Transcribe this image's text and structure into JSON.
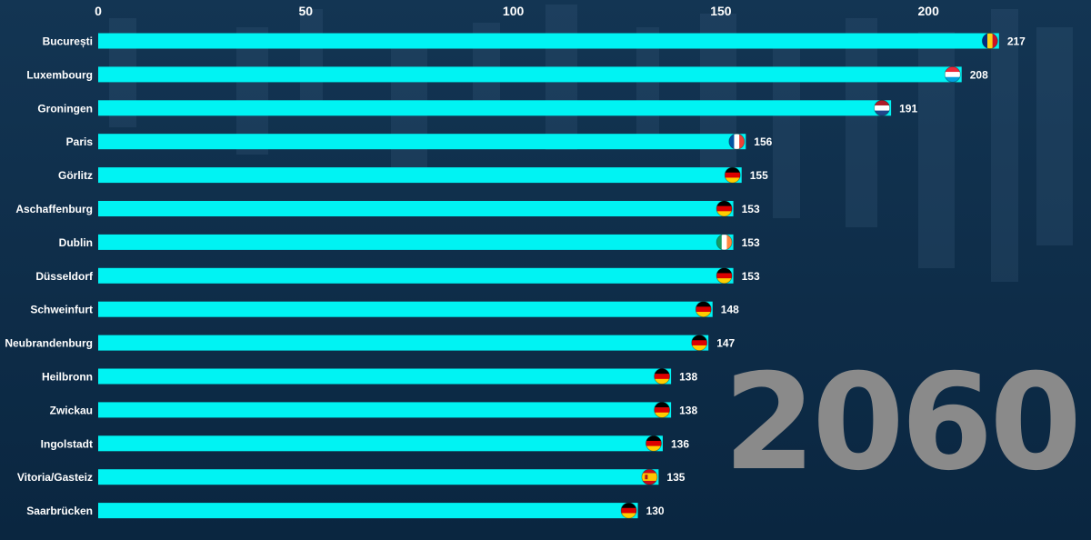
{
  "chart_data": {
    "type": "bar",
    "orientation": "horizontal",
    "year_label": "2060",
    "xlim": [
      0,
      217
    ],
    "x_ticks": [
      0,
      50,
      100,
      150,
      200
    ],
    "axis_position": "top",
    "grid": false,
    "categories": [
      "București",
      "Luxembourg",
      "Groningen",
      "Paris",
      "Görlitz",
      "Aschaffenburg",
      "Dublin",
      "Düsseldorf",
      "Schweinfurt",
      "Neubrandenburg",
      "Heilbronn",
      "Zwickau",
      "Ingolstadt",
      "Vitoria/Gasteiz",
      "Saarbrücken"
    ],
    "values": [
      217,
      208,
      191,
      156,
      155,
      153,
      153,
      153,
      148,
      147,
      138,
      138,
      136,
      135,
      130
    ],
    "flags": [
      "romania-flag-icon",
      "luxembourg-flag-icon",
      "netherlands-flag-icon",
      "france-flag-icon",
      "germany-flag-icon",
      "germany-flag-icon",
      "ireland-flag-icon",
      "germany-flag-icon",
      "germany-flag-icon",
      "germany-flag-icon",
      "germany-flag-icon",
      "germany-flag-icon",
      "germany-flag-icon",
      "spain-flag-icon",
      "germany-flag-icon"
    ]
  },
  "colors": {
    "bar": "#00f3f3",
    "background": "#0c2a44",
    "text": "#ffffff",
    "year": "#8a8a8a"
  }
}
